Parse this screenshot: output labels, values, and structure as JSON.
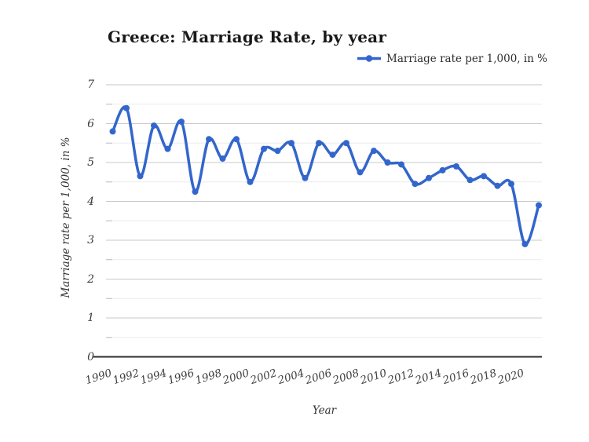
{
  "title": "Greece: Marriage Rate, by year",
  "legend": {
    "label": "Marriage rate per 1,000, in %"
  },
  "axes": {
    "x_title": "Year",
    "y_title": "Marriage rate per 1,000, in %"
  },
  "colors": {
    "series_blue": "#3366CC",
    "major_grid": "#c9c9c9",
    "minor_grid": "#ebebeb",
    "minor_tick": "#bdbdbd",
    "baseline": "#2b2b2b",
    "background": "#ffffff"
  },
  "chart_data": {
    "type": "line",
    "title": "Greece: Marriage Rate, by year",
    "xlabel": "Year",
    "ylabel": "Marriage rate per 1,000, in %",
    "legend_entries": [
      "Marriage rate per 1,000, in %"
    ],
    "legend_position": "top-right",
    "smooth": true,
    "markers": true,
    "grid": true,
    "ylim": [
      0,
      7
    ],
    "yticks": [
      0,
      1,
      2,
      3,
      4,
      5,
      6,
      7
    ],
    "minor_ytick_step": 0.5,
    "xticks": [
      1990,
      1992,
      1994,
      1996,
      1998,
      2000,
      2002,
      2004,
      2006,
      2008,
      2010,
      2012,
      2014,
      2016,
      2018,
      2020
    ],
    "x": [
      1990,
      1991,
      1992,
      1993,
      1994,
      1995,
      1996,
      1997,
      1998,
      1999,
      2000,
      2001,
      2002,
      2003,
      2004,
      2005,
      2006,
      2007,
      2008,
      2009,
      2010,
      2011,
      2012,
      2013,
      2014,
      2015,
      2016,
      2017,
      2018,
      2019,
      2020,
      2021
    ],
    "series": [
      {
        "name": "Marriage rate per 1,000, in %",
        "values": [
          5.8,
          6.4,
          4.65,
          5.95,
          5.35,
          6.05,
          4.25,
          5.6,
          5.1,
          5.6,
          4.5,
          5.35,
          5.3,
          5.5,
          4.6,
          5.5,
          5.2,
          5.5,
          4.75,
          5.3,
          5.0,
          4.95,
          4.45,
          4.6,
          4.8,
          4.9,
          4.55,
          4.65,
          4.4,
          4.45,
          2.9,
          3.9
        ]
      }
    ]
  }
}
